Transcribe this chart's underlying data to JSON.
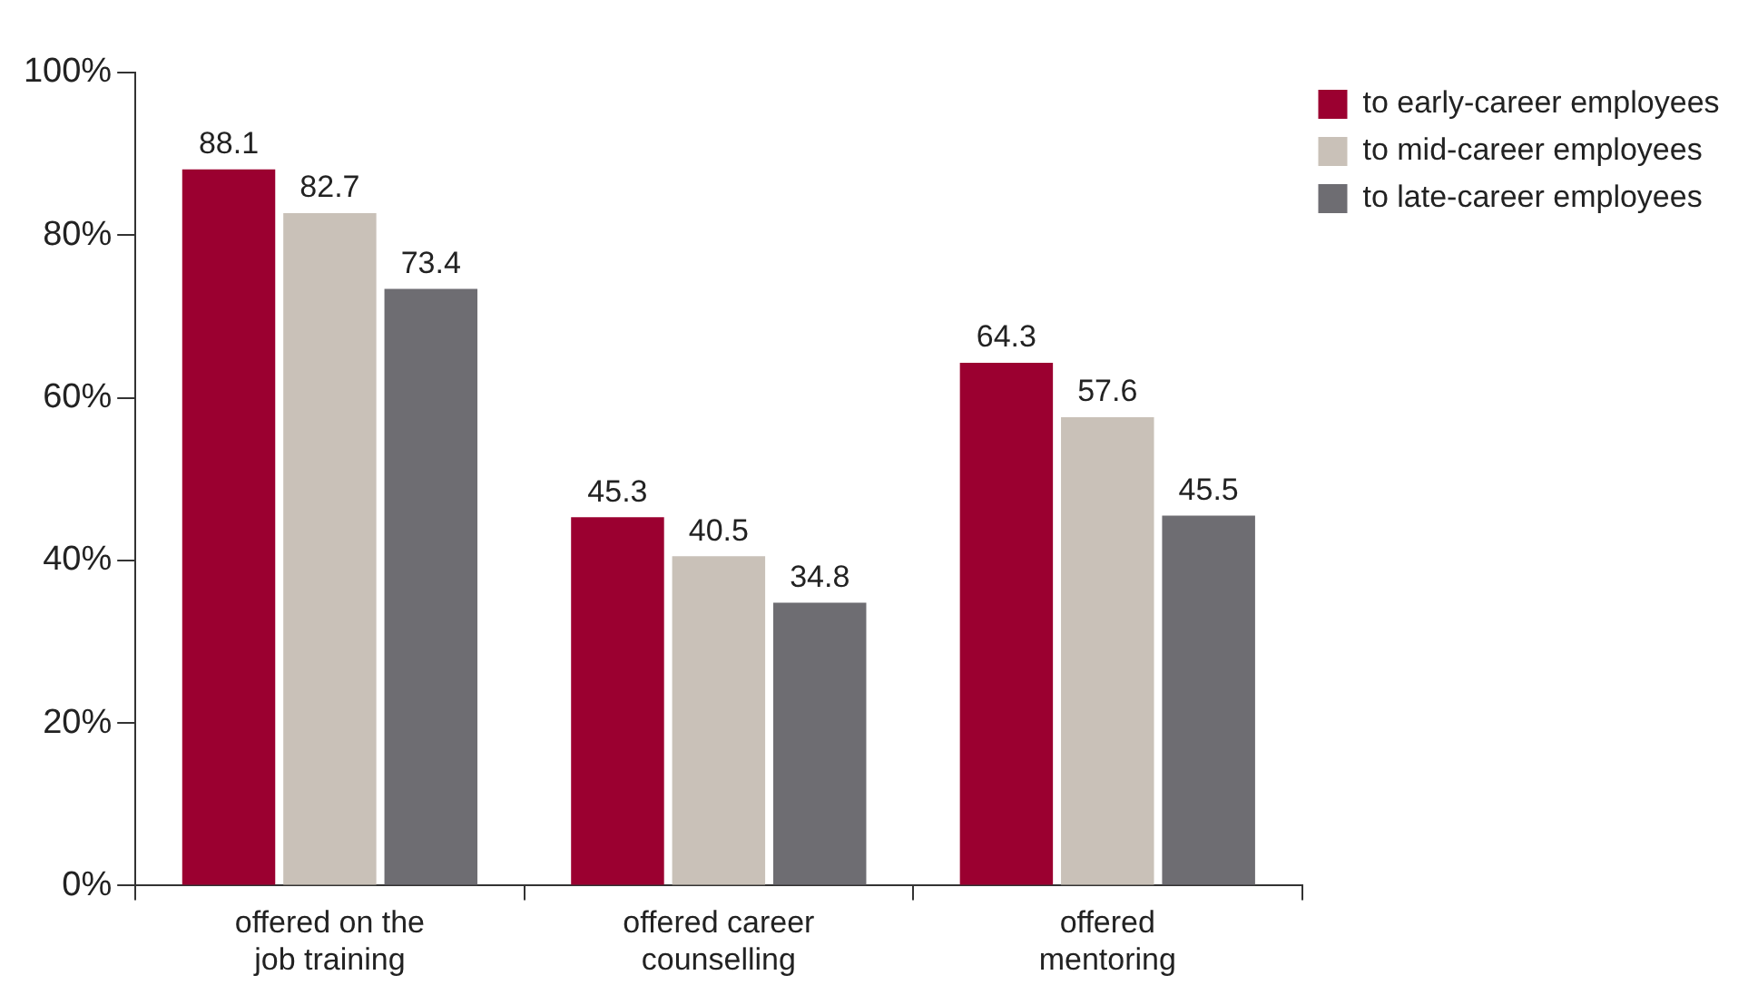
{
  "chart_data": {
    "type": "bar",
    "categories": [
      "offered on the job training",
      "offered career counselling",
      "offered mentoring"
    ],
    "series": [
      {
        "name": "to early-career employees",
        "color": "#9b0030",
        "values": [
          88.1,
          45.3,
          64.3
        ]
      },
      {
        "name": "to mid-career employees",
        "color": "#c9c1b8",
        "values": [
          82.7,
          40.5,
          57.6
        ]
      },
      {
        "name": "to late-career employees",
        "color": "#6e6d72",
        "values": [
          73.4,
          34.8,
          45.5
        ]
      }
    ],
    "ylim": [
      0,
      100
    ],
    "yticks": [
      {
        "value": 0,
        "label": "0%"
      },
      {
        "value": 20,
        "label": "20%"
      },
      {
        "value": 40,
        "label": "40%"
      },
      {
        "value": 60,
        "label": "60%"
      },
      {
        "value": 80,
        "label": "80%"
      },
      {
        "value": 100,
        "label": "100%"
      }
    ],
    "grid": false,
    "legend": "top right",
    "data_labels": true
  }
}
